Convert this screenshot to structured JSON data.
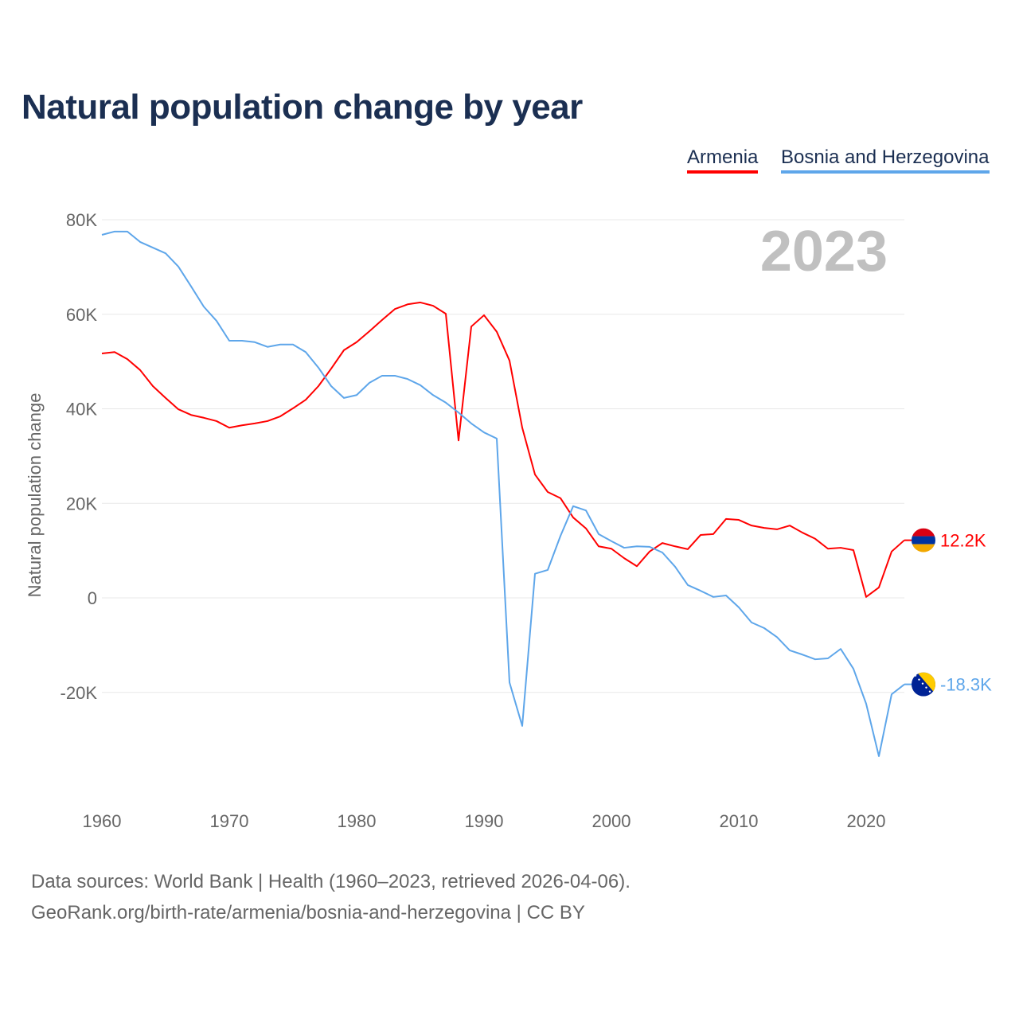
{
  "chart_data": {
    "type": "line",
    "title": "Natural population change by year",
    "ylabel": "Natural population change",
    "xlabel": "",
    "year_label": "2023",
    "ylim": [
      -40000,
      80000
    ],
    "xlim": [
      1960,
      2023
    ],
    "y_ticks": [
      {
        "v": 80000,
        "label": "80K"
      },
      {
        "v": 60000,
        "label": "60K"
      },
      {
        "v": 40000,
        "label": "40K"
      },
      {
        "v": 20000,
        "label": "20K"
      },
      {
        "v": 0,
        "label": "0"
      },
      {
        "v": -20000,
        "label": "-20K"
      }
    ],
    "x_ticks": [
      {
        "v": 1960,
        "label": "1960"
      },
      {
        "v": 1970,
        "label": "1970"
      },
      {
        "v": 1980,
        "label": "1980"
      },
      {
        "v": 1990,
        "label": "1990"
      },
      {
        "v": 2000,
        "label": "2000"
      },
      {
        "v": 2010,
        "label": "2010"
      },
      {
        "v": 2020,
        "label": "2020"
      }
    ],
    "grid": true,
    "legend_position": "top-right",
    "x_start": 1960,
    "series": [
      {
        "name": "Armenia",
        "color": "#ff0000",
        "end_label": "12.2K",
        "flag": "armenia-flag",
        "values": [
          51.7,
          52.0,
          50.5,
          48.2,
          44.8,
          42.3,
          39.9,
          38.7,
          38.1,
          37.4,
          36.0,
          36.5,
          36.9,
          37.4,
          38.4,
          40.1,
          41.9,
          44.8,
          48.5,
          52.4,
          54.1,
          56.4,
          58.8,
          61.1,
          62.1,
          62.5,
          61.8,
          60.1,
          33.3,
          57.4,
          59.8,
          56.3,
          50.2,
          36.0,
          26.1,
          22.4,
          21.1,
          17.0,
          14.7,
          10.9,
          10.4,
          8.4,
          6.7,
          9.8,
          11.6,
          10.9,
          10.3,
          13.3,
          13.5,
          16.7,
          16.5,
          15.3,
          14.8,
          14.5,
          15.3,
          13.8,
          12.5,
          10.4,
          10.6,
          10.1,
          0.2,
          2.2,
          9.8,
          12.2
        ]
      },
      {
        "name": "Bosnia and Herzegovina",
        "color": "#5ea6ea",
        "end_label": "-18.3K",
        "flag": "bosnia-flag",
        "values": [
          76.8,
          77.5,
          77.5,
          75.3,
          74.1,
          72.9,
          70.1,
          65.9,
          61.6,
          58.6,
          54.4,
          54.4,
          54.1,
          53.1,
          53.6,
          53.6,
          52.0,
          48.7,
          44.8,
          42.3,
          42.9,
          45.5,
          47.0,
          47.0,
          46.3,
          45.0,
          42.9,
          41.3,
          39.2,
          36.9,
          35.0,
          33.7,
          -17.9,
          -27.1,
          5.1,
          5.9,
          13.1,
          19.4,
          18.5,
          13.5,
          12.0,
          10.6,
          10.9,
          10.8,
          9.6,
          6.6,
          2.7,
          1.5,
          0.2,
          0.5,
          -2.0,
          -5.2,
          -6.4,
          -8.3,
          -11.1,
          -12.0,
          -13.0,
          -12.8,
          -10.8,
          -15.0,
          -22.4,
          -33.5,
          -20.4,
          -18.3
        ]
      }
    ]
  },
  "footer": {
    "line1": "Data sources: World Bank | Health (1960–2023, retrieved 2026-04-06).",
    "line2": "GeoRank.org/birth-rate/armenia/bosnia-and-herzegovina | CC BY"
  }
}
